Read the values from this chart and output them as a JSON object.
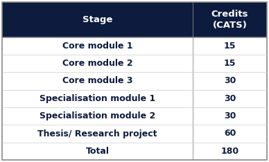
{
  "header": [
    "Stage",
    "Credits\n(CATS)"
  ],
  "rows": [
    [
      "Core module 1",
      "15"
    ],
    [
      "Core module 2",
      "15"
    ],
    [
      "Core module 3",
      "30"
    ],
    [
      "Specialisation module 1",
      "30"
    ],
    [
      "Specialisation module 2",
      "30"
    ],
    [
      "Thesis/ Research project",
      "60"
    ],
    [
      "Total",
      "180"
    ]
  ],
  "header_bg": "#0d1b3e",
  "header_text_color": "#ffffff",
  "body_bg": "#ffffff",
  "body_text_color": "#0d1b3e",
  "col_split": 0.72,
  "header_fontsize": 9.5,
  "body_fontsize": 9.0,
  "fig_width": 3.88,
  "fig_height": 2.34,
  "dpi": 100
}
